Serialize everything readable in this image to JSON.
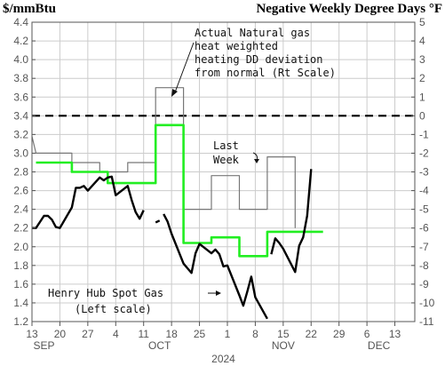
{
  "header": {
    "left_unit": "$/mmBtu",
    "right_unit": "Negative Weekly Degree Days °F"
  },
  "annotations": {
    "dd_label": [
      "Actual Natural gas",
      "heat weighted",
      "heating DD deviation",
      "from normal (Rt Scale)"
    ],
    "last_week_label": [
      "Last",
      "Week"
    ],
    "henry_hub_label": [
      "Henry Hub Spot Gas",
      "(Left scale)"
    ]
  },
  "colors": {
    "price": "#000000",
    "dd_actual": "#777777",
    "dd_avg": "#22ee22",
    "zero_line": "#000000",
    "grid": "#cccccc"
  },
  "chart_data": {
    "type": "line",
    "title": "",
    "grid": true,
    "x_axis": {
      "ticks": [
        {
          "date": "2024-09-13",
          "label": "13"
        },
        {
          "date": "2024-09-20",
          "label": "20"
        },
        {
          "date": "2024-09-27",
          "label": "27"
        },
        {
          "date": "2024-10-04",
          "label": "4"
        },
        {
          "date": "2024-10-11",
          "label": "11"
        },
        {
          "date": "2024-10-18",
          "label": "18"
        },
        {
          "date": "2024-10-25",
          "label": "25"
        },
        {
          "date": "2024-11-01",
          "label": "1"
        },
        {
          "date": "2024-11-08",
          "label": "8"
        },
        {
          "date": "2024-11-15",
          "label": "15"
        },
        {
          "date": "2024-11-22",
          "label": "22"
        },
        {
          "date": "2024-11-29",
          "label": "29"
        },
        {
          "date": "2024-12-06",
          "label": "6"
        },
        {
          "date": "2024-12-13",
          "label": "13"
        }
      ],
      "month_labels": [
        {
          "date": "2024-09-16",
          "label": "SEP"
        },
        {
          "date": "2024-10-15",
          "label": "OCT"
        },
        {
          "date": "2024-11-15",
          "label": "NOV"
        },
        {
          "date": "2024-12-09",
          "label": "DEC"
        }
      ],
      "year_label": {
        "date": "2024-10-31",
        "label": "2024"
      },
      "xlim": [
        "2024-09-13",
        "2024-12-18"
      ]
    },
    "y_left": {
      "ylim": [
        1.2,
        4.4
      ],
      "ticks": [
        "4.4",
        "4.2",
        "4.0",
        "3.8",
        "3.6",
        "3.4",
        "3.2",
        "3.0",
        "2.8",
        "2.6",
        "2.4",
        "2.2",
        "2.0",
        "1.8",
        "1.6",
        "1.4",
        "1.2"
      ]
    },
    "y_right": {
      "ylim": [
        -11,
        5
      ],
      "ticks": [
        "5",
        "4",
        "3",
        "2",
        "1",
        "0",
        "-1",
        "-2",
        "-3",
        "-4",
        "-5",
        "-6",
        "-7",
        "-8",
        "-9",
        "-10",
        "-11"
      ],
      "reference_line": 0
    },
    "series": [
      {
        "key": "henry_hub",
        "axis": "left",
        "segments": [
          [
            [
              "2024-09-13",
              2.2
            ],
            [
              "2024-09-14",
              2.2
            ],
            [
              "2024-09-16",
              2.33
            ],
            [
              "2024-09-17",
              2.33
            ],
            [
              "2024-09-18",
              2.29
            ],
            [
              "2024-09-19",
              2.21
            ],
            [
              "2024-09-20",
              2.2
            ],
            [
              "2024-09-23",
              2.42
            ],
            [
              "2024-09-24",
              2.63
            ],
            [
              "2024-09-25",
              2.63
            ],
            [
              "2024-09-26",
              2.65
            ],
            [
              "2024-09-27",
              2.6
            ],
            [
              "2024-09-30",
              2.74
            ],
            [
              "2024-10-01",
              2.71
            ],
            [
              "2024-10-02",
              2.74
            ],
            [
              "2024-10-03",
              2.75
            ],
            [
              "2024-10-04",
              2.55
            ],
            [
              "2024-10-07",
              2.65
            ],
            [
              "2024-10-08",
              2.5
            ],
            [
              "2024-10-09",
              2.37
            ],
            [
              "2024-10-10",
              2.3
            ],
            [
              "2024-10-11",
              2.39
            ]
          ],
          [
            [
              "2024-10-14",
              2.26
            ],
            [
              "2024-10-15",
              2.28
            ]
          ],
          [
            [
              "2024-10-16",
              2.35
            ],
            [
              "2024-10-17",
              2.27
            ],
            [
              "2024-10-18",
              2.14
            ],
            [
              "2024-10-21",
              1.82
            ],
            [
              "2024-10-22",
              1.77
            ],
            [
              "2024-10-23",
              1.72
            ],
            [
              "2024-10-24",
              1.93
            ],
            [
              "2024-10-25",
              2.03
            ],
            [
              "2024-10-28",
              1.93
            ],
            [
              "2024-10-29",
              1.97
            ],
            [
              "2024-10-30",
              1.92
            ],
            [
              "2024-10-31",
              1.79
            ],
            [
              "2024-11-01",
              1.8
            ],
            [
              "2024-11-04",
              1.48
            ],
            [
              "2024-11-05",
              1.37
            ],
            [
              "2024-11-06",
              1.52
            ],
            [
              "2024-11-07",
              1.68
            ],
            [
              "2024-11-08",
              1.46
            ],
            [
              "2024-11-11",
              1.23
            ]
          ],
          [
            [
              "2024-11-12",
              1.92
            ],
            [
              "2024-11-13",
              2.09
            ],
            [
              "2024-11-14",
              2.04
            ],
            [
              "2024-11-15",
              1.98
            ],
            [
              "2024-11-18",
              1.73
            ],
            [
              "2024-11-19",
              2.01
            ],
            [
              "2024-11-20",
              2.1
            ],
            [
              "2024-11-21",
              2.33
            ],
            [
              "2024-11-22",
              2.83
            ]
          ]
        ]
      },
      {
        "key": "dd_actual",
        "axis": "right",
        "segments": [
          [
            [
              "2024-09-13",
              -1.1
            ],
            [
              "2024-09-14",
              -2.0
            ],
            [
              "2024-09-23",
              -2.0
            ],
            [
              "2024-09-23",
              -2.5
            ],
            [
              "2024-09-30",
              -2.5
            ],
            [
              "2024-09-30",
              -3.0
            ],
            [
              "2024-10-07",
              -3.0
            ],
            [
              "2024-10-07",
              -2.5
            ],
            [
              "2024-10-14",
              -2.5
            ],
            [
              "2024-10-14",
              1.5
            ],
            [
              "2024-10-21",
              1.5
            ],
            [
              "2024-10-21",
              -5.0
            ],
            [
              "2024-10-28",
              -5.0
            ],
            [
              "2024-10-28",
              -3.2
            ],
            [
              "2024-11-04",
              -3.2
            ],
            [
              "2024-11-04",
              -5.0
            ],
            [
              "2024-11-11",
              -5.0
            ],
            [
              "2024-11-11",
              -2.2
            ],
            [
              "2024-11-18",
              -2.2
            ],
            [
              "2024-11-18",
              -6.0
            ]
          ]
        ]
      },
      {
        "key": "dd_avg",
        "axis": "right",
        "segments": [
          [
            [
              "2024-09-14",
              -2.5
            ],
            [
              "2024-09-23",
              -2.5
            ],
            [
              "2024-09-23",
              -3.0
            ],
            [
              "2024-10-02",
              -3.0
            ],
            [
              "2024-10-02",
              -3.6
            ],
            [
              "2024-10-14",
              -3.6
            ],
            [
              "2024-10-14",
              -0.5
            ],
            [
              "2024-10-21",
              -0.5
            ],
            [
              "2024-10-21",
              -6.8
            ],
            [
              "2024-10-28",
              -6.8
            ],
            [
              "2024-10-28",
              -6.5
            ],
            [
              "2024-11-04",
              -6.5
            ],
            [
              "2024-11-04",
              -7.5
            ],
            [
              "2024-11-11",
              -7.5
            ],
            [
              "2024-11-11",
              -6.2
            ],
            [
              "2024-11-25",
              -6.2
            ]
          ]
        ]
      }
    ]
  }
}
